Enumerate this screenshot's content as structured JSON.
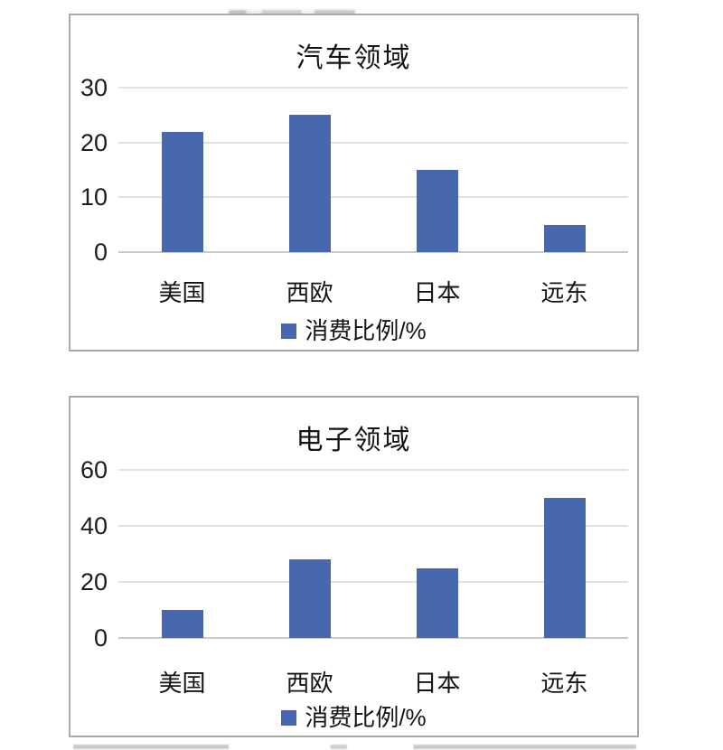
{
  "page": {
    "background": "#ffffff",
    "border_color": "#a9a9a9"
  },
  "chart_data": [
    {
      "type": "bar",
      "title": "汽车领域",
      "categories": [
        "美国",
        "西欧",
        "日本",
        "远东"
      ],
      "values": [
        22,
        25,
        15,
        5
      ],
      "series_name": "消费比例/%",
      "xlabel": "",
      "ylabel": "",
      "ylim": [
        0,
        30
      ],
      "yticks": [
        0,
        10,
        20,
        30
      ],
      "grid": true,
      "legend_position": "bottom",
      "bar_color": "#4768af"
    },
    {
      "type": "bar",
      "title": "电子领域",
      "categories": [
        "美国",
        "西欧",
        "日本",
        "远东"
      ],
      "values": [
        10,
        28,
        25,
        50
      ],
      "series_name": "消费比例/%",
      "xlabel": "",
      "ylabel": "",
      "ylim": [
        0,
        60
      ],
      "yticks": [
        0,
        20,
        40,
        60
      ],
      "grid": true,
      "legend_position": "bottom",
      "bar_color": "#4768af"
    }
  ]
}
